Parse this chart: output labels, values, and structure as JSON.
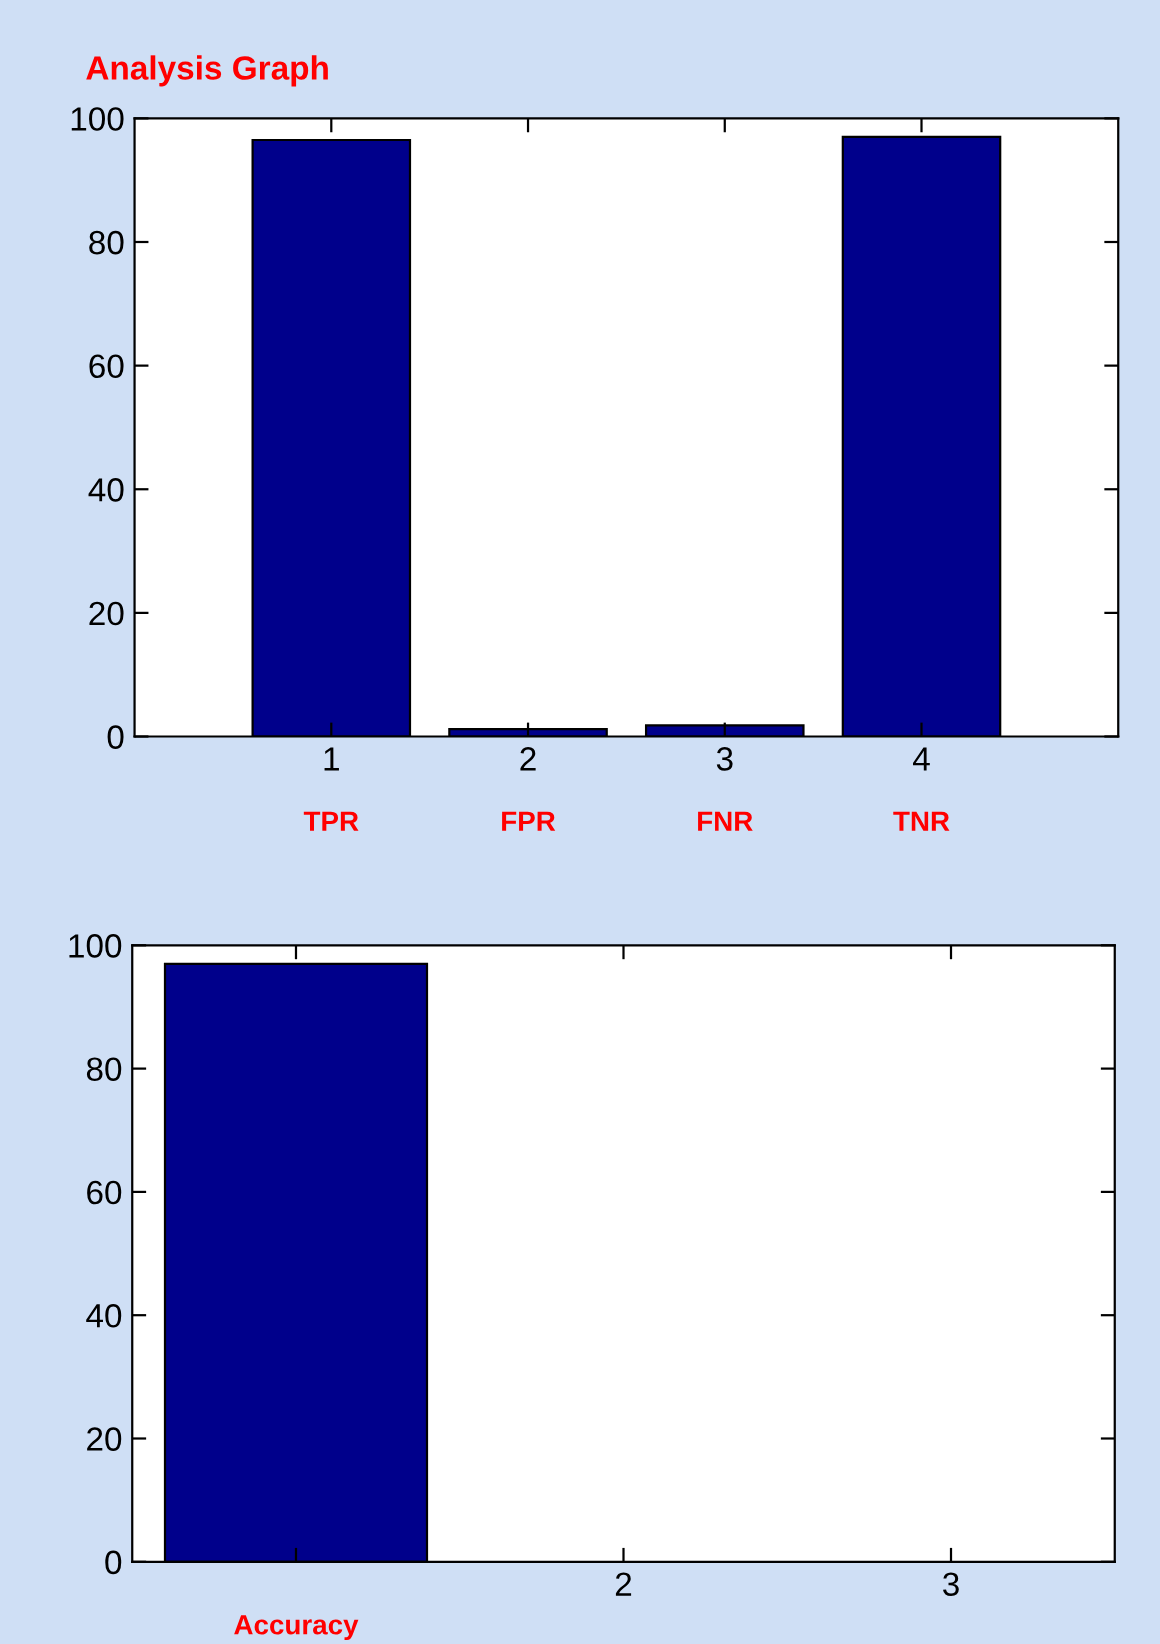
{
  "chart_data": [
    {
      "type": "bar",
      "title": "Analysis Graph",
      "x": [
        1,
        2,
        3,
        4
      ],
      "values": [
        96.5,
        1.2,
        1.8,
        97.0
      ],
      "color": "#00008b",
      "xlim": [
        0,
        5
      ],
      "xticks": [
        1,
        2,
        3,
        4
      ],
      "ylim": [
        0,
        100
      ],
      "yticks": [
        0,
        20,
        40,
        60,
        80,
        100
      ],
      "grid": false,
      "annotations": [
        "TPR",
        "FPR",
        "FNR",
        "TNR"
      ]
    },
    {
      "type": "bar",
      "x": [
        1
      ],
      "values": [
        97.0
      ],
      "color": "#00008b",
      "xlim": [
        0.5,
        3.5
      ],
      "xticks": [
        {
          "value": 1,
          "label": null
        },
        2,
        3
      ],
      "ylim": [
        0,
        100
      ],
      "yticks": [
        0,
        20,
        40,
        60,
        80,
        100
      ],
      "grid": false,
      "annotations": [
        "Accuracy"
      ]
    }
  ]
}
